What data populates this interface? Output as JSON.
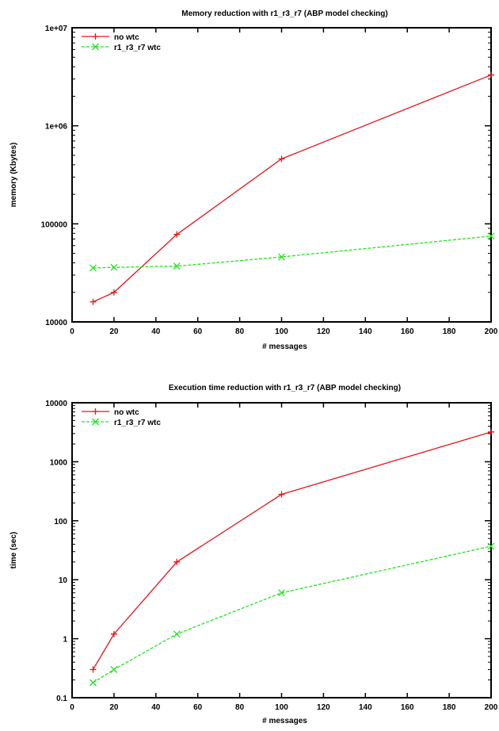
{
  "chart_data": [
    {
      "type": "line",
      "title": "Memory reduction with r1_r3_r7 (ABP model checking)",
      "xlabel": "# messages",
      "ylabel": "memory (Kbytes)",
      "xlim": [
        0,
        200
      ],
      "ylim": [
        10000,
        10000000
      ],
      "yscale": "log",
      "grid": false,
      "legend_position": "top-left",
      "x_ticks": [
        0,
        20,
        40,
        60,
        80,
        100,
        120,
        140,
        160,
        180,
        200
      ],
      "x_tick_labels": [
        "0",
        "20",
        "40",
        "60",
        "80",
        "100",
        "120",
        "140",
        "160",
        "180",
        "200"
      ],
      "y_ticks": [
        10000,
        100000,
        1000000,
        10000000
      ],
      "y_tick_labels": [
        "10000",
        "100000",
        "1e+06",
        "1e+07"
      ],
      "series": [
        {
          "name": "no wtc",
          "color": "#e8141a",
          "marker": "plus",
          "line_style": "solid",
          "x": [
            10,
            20,
            50,
            100,
            200
          ],
          "y": [
            16000,
            20000,
            78000,
            460000,
            3300000
          ]
        },
        {
          "name": "r1_r3_r7 wtc",
          "color": "#1ee61e",
          "marker": "cross",
          "line_style": "dashed",
          "x": [
            10,
            20,
            50,
            100,
            200
          ],
          "y": [
            35500,
            36000,
            37000,
            46000,
            75000
          ]
        }
      ]
    },
    {
      "type": "line",
      "title": "Execution time reduction with r1_r3_r7 (ABP model checking)",
      "xlabel": "# messages",
      "ylabel": "time (sec)",
      "xlim": [
        0,
        200
      ],
      "ylim": [
        0.1,
        10000
      ],
      "yscale": "log",
      "grid": false,
      "legend_position": "top-left",
      "x_ticks": [
        0,
        20,
        40,
        60,
        80,
        100,
        120,
        140,
        160,
        180,
        200
      ],
      "x_tick_labels": [
        "0",
        "20",
        "40",
        "60",
        "80",
        "100",
        "120",
        "140",
        "160",
        "180",
        "200"
      ],
      "y_ticks": [
        0.1,
        1,
        10,
        100,
        1000,
        10000
      ],
      "y_tick_labels": [
        "0.1",
        "1",
        "10",
        "100",
        "1000",
        "10000"
      ],
      "series": [
        {
          "name": "no wtc",
          "color": "#e8141a",
          "marker": "plus",
          "line_style": "solid",
          "x": [
            10,
            20,
            50,
            100,
            200
          ],
          "y": [
            0.3,
            1.2,
            20,
            280,
            3200
          ]
        },
        {
          "name": "r1_r3_r7 wtc",
          "color": "#1ee61e",
          "marker": "cross",
          "line_style": "dashed",
          "x": [
            10,
            20,
            50,
            100,
            200
          ],
          "y": [
            0.18,
            0.3,
            1.2,
            6,
            37
          ]
        }
      ]
    }
  ]
}
